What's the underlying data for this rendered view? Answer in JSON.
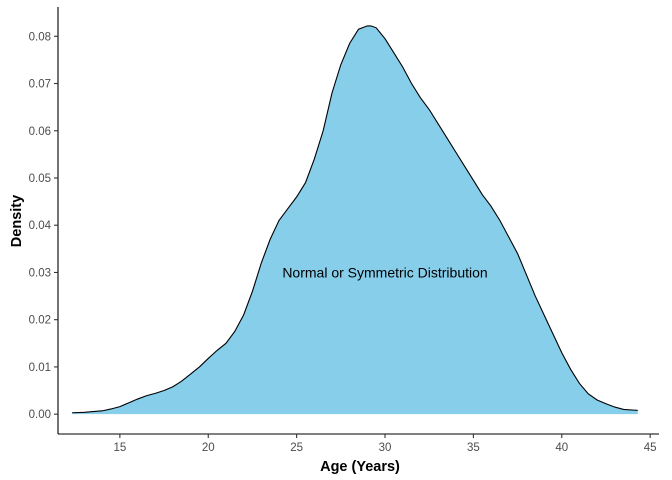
{
  "chart_data": {
    "type": "area",
    "xlabel": "Age (Years)",
    "ylabel": "Density",
    "xlim": [
      11.5,
      45.5
    ],
    "ylim": [
      -0.0042,
      0.0862
    ],
    "x_ticks": [
      15,
      20,
      25,
      30,
      35,
      40,
      45
    ],
    "y_ticks": [
      0.0,
      0.01,
      0.02,
      0.03,
      0.04,
      0.05,
      0.06,
      0.07,
      0.08
    ],
    "x_tick_labels": [
      "15",
      "20",
      "25",
      "30",
      "35",
      "40",
      "45"
    ],
    "y_tick_labels": [
      "0.00",
      "0.01",
      "0.02",
      "0.03",
      "0.04",
      "0.05",
      "0.06",
      "0.07",
      "0.08"
    ],
    "annotation": {
      "text": "Normal or Symmetric Distribution",
      "x": 30,
      "y": 0.03
    },
    "grid": false,
    "fill_color": "#87CEEB",
    "line_color": "#000000",
    "series": [
      {
        "x": [
          12.3,
          13.0,
          14.0,
          14.5,
          15.0,
          15.5,
          16.0,
          16.5,
          17.0,
          17.5,
          18.0,
          18.5,
          19.0,
          19.5,
          20.0,
          20.5,
          21.0,
          21.5,
          22.0,
          22.5,
          23.0,
          23.5,
          24.0,
          24.5,
          25.0,
          25.5,
          26.0,
          26.5,
          27.0,
          27.5,
          28.0,
          28.5,
          29.0,
          29.2,
          29.5,
          30.0,
          30.5,
          31.0,
          31.5,
          32.0,
          32.5,
          33.0,
          33.5,
          34.0,
          34.5,
          35.0,
          35.5,
          36.0,
          36.5,
          37.0,
          37.5,
          38.0,
          38.5,
          39.0,
          39.5,
          40.0,
          40.5,
          41.0,
          41.5,
          42.0,
          42.5,
          43.0,
          43.5,
          44.3
        ],
        "values": [
          0.0003,
          0.0004,
          0.0007,
          0.0011,
          0.0016,
          0.0024,
          0.0032,
          0.0039,
          0.0044,
          0.005,
          0.0058,
          0.007,
          0.0085,
          0.01,
          0.0118,
          0.0135,
          0.015,
          0.0175,
          0.021,
          0.026,
          0.032,
          0.037,
          0.041,
          0.0435,
          0.046,
          0.049,
          0.054,
          0.06,
          0.068,
          0.074,
          0.0785,
          0.0815,
          0.0822,
          0.0822,
          0.0818,
          0.0795,
          0.0765,
          0.0735,
          0.07,
          0.067,
          0.0645,
          0.0615,
          0.0585,
          0.0555,
          0.0525,
          0.0495,
          0.0465,
          0.044,
          0.041,
          0.0375,
          0.034,
          0.0295,
          0.025,
          0.021,
          0.017,
          0.013,
          0.0095,
          0.0065,
          0.0043,
          0.003,
          0.0022,
          0.0015,
          0.001,
          0.0008
        ]
      }
    ]
  }
}
